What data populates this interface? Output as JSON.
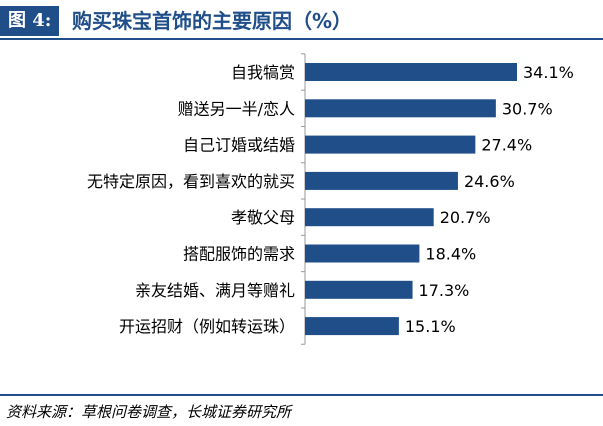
{
  "figure": {
    "tag": "图 4:",
    "title": "购买珠宝首饰的主要原因（%）"
  },
  "source": "资料来源：草根问卷调查，长城证券研究所",
  "colors": {
    "bar": "#1f4e89",
    "accent": "#1f4e89"
  },
  "chart_data": {
    "type": "bar",
    "orientation": "horizontal",
    "categories": [
      "自我犒赏",
      "赠送另一半/恋人",
      "自己订婚或结婚",
      "无特定原因，看到喜欢的就买",
      "孝敬父母",
      "搭配服饰的需求",
      "亲友结婚、满月等赠礼",
      "开运招财（例如转运珠）"
    ],
    "values": [
      34.1,
      30.7,
      27.4,
      24.6,
      20.7,
      18.4,
      17.3,
      15.1
    ],
    "value_labels": [
      "34.1%",
      "30.7%",
      "27.4%",
      "24.6%",
      "20.7%",
      "18.4%",
      "17.3%",
      "15.1%"
    ],
    "xlim": [
      0,
      34.1
    ],
    "grid": false,
    "legend": "none"
  }
}
